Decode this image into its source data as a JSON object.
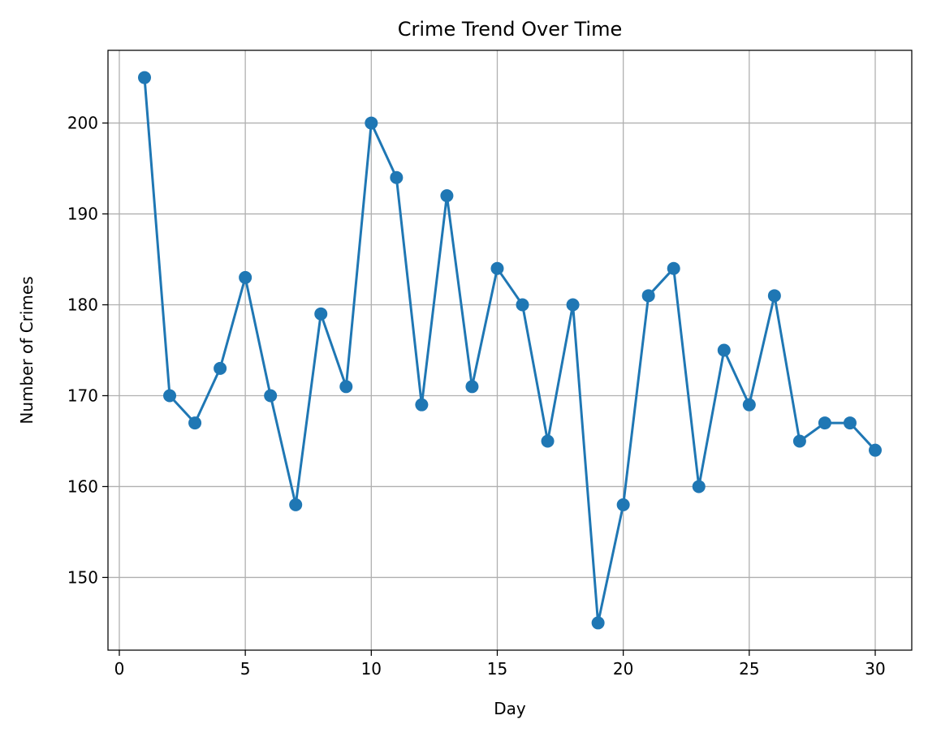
{
  "chart_data": {
    "type": "line",
    "title": "Crime Trend Over Time",
    "xlabel": "Day",
    "ylabel": "Number of Crimes",
    "xlim": [
      -0.45,
      31.45
    ],
    "ylim": [
      142.0,
      208.0
    ],
    "xticks": [
      0,
      5,
      10,
      15,
      20,
      25,
      30
    ],
    "yticks": [
      150,
      160,
      170,
      180,
      190,
      200
    ],
    "grid": true,
    "line_color": "#1f77b4",
    "marker": "circle",
    "x": [
      1,
      2,
      3,
      4,
      5,
      6,
      7,
      8,
      9,
      10,
      11,
      12,
      13,
      14,
      15,
      16,
      17,
      18,
      19,
      20,
      21,
      22,
      23,
      24,
      25,
      26,
      27,
      28,
      29,
      30
    ],
    "y": [
      205,
      170,
      167,
      173,
      183,
      170,
      158,
      179,
      171,
      200,
      194,
      169,
      192,
      171,
      184,
      180,
      165,
      180,
      145,
      158,
      181,
      184,
      160,
      175,
      169,
      181,
      165,
      167,
      167,
      164
    ]
  }
}
